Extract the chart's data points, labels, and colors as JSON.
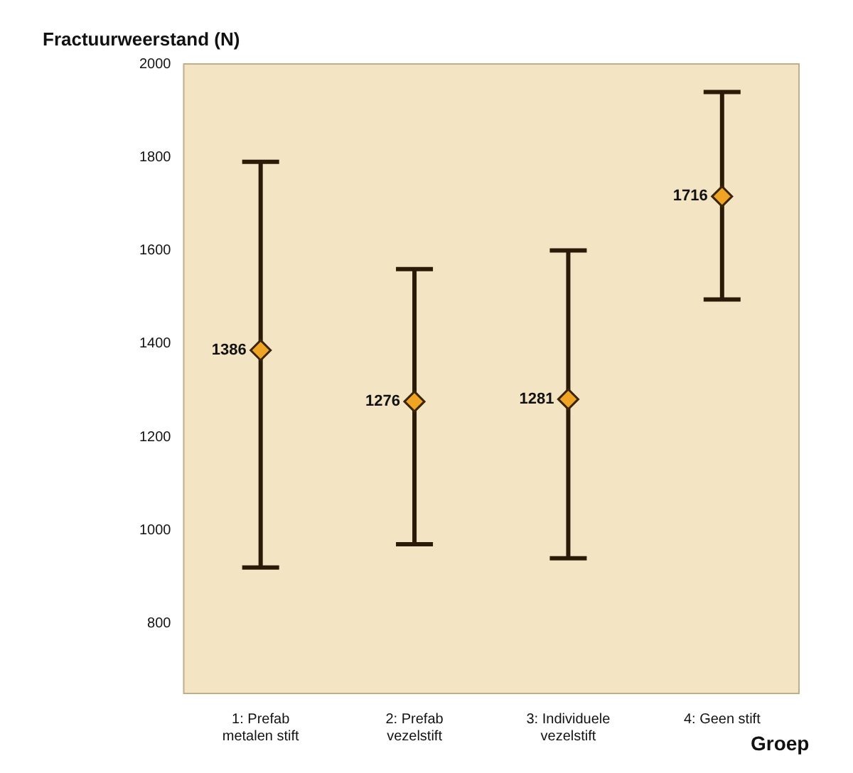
{
  "chart_data": {
    "type": "scatter",
    "ylabel": "Fractuurweerstand (N)",
    "xlabel": "Groep",
    "categories": [
      "1: Prefab metalen stift",
      "2: Prefab vezelstift",
      "3: Individuele vezelstift",
      "4: Geen stift"
    ],
    "values": [
      1386,
      1276,
      1281,
      1716
    ],
    "value_labels": [
      "1386",
      "1276",
      "1281",
      "1716"
    ],
    "errors": [
      [
        920,
        1790
      ],
      [
        970,
        1560
      ],
      [
        940,
        1600
      ],
      [
        1495,
        1940
      ]
    ],
    "color": "#f0a423",
    "marker": "diamond",
    "ylim": [
      650,
      2000
    ],
    "yticks": [
      800,
      1000,
      1200,
      1400,
      1600,
      1800,
      2000
    ],
    "grid": false,
    "legend": false
  }
}
